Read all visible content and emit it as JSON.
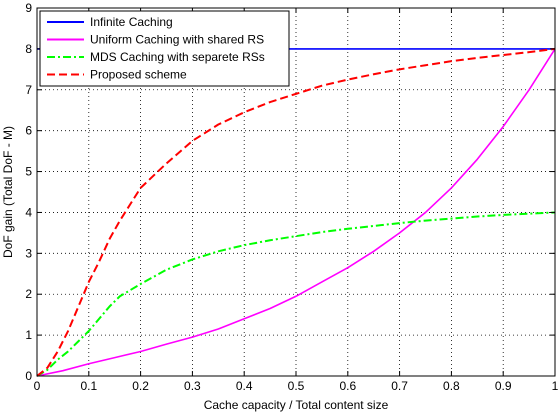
{
  "chart_data": {
    "type": "line",
    "title": "",
    "xlabel": "Cache capacity / Total content size",
    "ylabel": "DoF gain (Total DoF - M)",
    "xlim": [
      0,
      1
    ],
    "ylim": [
      0,
      9
    ],
    "xticks": [
      0,
      0.1,
      0.2,
      0.3,
      0.4,
      0.5,
      0.6,
      0.7,
      0.8,
      0.9,
      1
    ],
    "xtick_labels": [
      "0",
      "0.1",
      "0.2",
      "0.3",
      "0.4",
      "0.5",
      "0.6",
      "0.7",
      "0.8",
      "0.9",
      "1"
    ],
    "yticks": [
      0,
      1,
      2,
      3,
      4,
      5,
      6,
      7,
      8,
      9
    ],
    "ytick_labels": [
      "0",
      "1",
      "2",
      "3",
      "4",
      "5",
      "6",
      "7",
      "8",
      "9"
    ],
    "grid": true,
    "legend_position": "top-left",
    "series": [
      {
        "name": "Infinite Caching",
        "color": "#0000ff",
        "style": "solid",
        "x": [
          0,
          1
        ],
        "y": [
          8,
          8
        ]
      },
      {
        "name": "Uniform Caching with shared RS",
        "color": "#ff00ff",
        "style": "solid",
        "x": [
          0,
          0.05,
          0.1,
          0.15,
          0.2,
          0.25,
          0.3,
          0.35,
          0.4,
          0.45,
          0.5,
          0.55,
          0.6,
          0.65,
          0.7,
          0.75,
          0.8,
          0.85,
          0.9,
          0.95,
          1
        ],
        "y": [
          0,
          0.13,
          0.3,
          0.45,
          0.6,
          0.78,
          0.95,
          1.15,
          1.4,
          1.65,
          1.95,
          2.3,
          2.65,
          3.05,
          3.5,
          4.0,
          4.6,
          5.3,
          6.1,
          7.0,
          8.0
        ]
      },
      {
        "name": "MDS Caching with separete RSs",
        "color": "#00ff00",
        "style": "dashdot",
        "x": [
          0,
          0.02,
          0.04,
          0.06,
          0.08,
          0.1,
          0.12,
          0.14,
          0.16,
          0.18,
          0.2,
          0.25,
          0.3,
          0.35,
          0.4,
          0.45,
          0.5,
          0.55,
          0.6,
          0.65,
          0.7,
          0.75,
          0.8,
          0.85,
          0.9,
          0.95,
          1
        ],
        "y": [
          0,
          0.15,
          0.4,
          0.6,
          0.85,
          1.1,
          1.4,
          1.7,
          1.95,
          2.1,
          2.25,
          2.6,
          2.85,
          3.05,
          3.2,
          3.32,
          3.42,
          3.52,
          3.6,
          3.67,
          3.74,
          3.8,
          3.85,
          3.9,
          3.94,
          3.97,
          4.0
        ]
      },
      {
        "name": "Proposed scheme",
        "color": "#ff0000",
        "style": "dashed",
        "x": [
          0,
          0.02,
          0.04,
          0.06,
          0.08,
          0.1,
          0.12,
          0.14,
          0.16,
          0.18,
          0.2,
          0.25,
          0.3,
          0.35,
          0.4,
          0.45,
          0.5,
          0.55,
          0.6,
          0.65,
          0.7,
          0.75,
          0.8,
          0.85,
          0.9,
          0.95,
          1
        ],
        "y": [
          0,
          0.2,
          0.6,
          1.1,
          1.7,
          2.3,
          2.8,
          3.35,
          3.8,
          4.2,
          4.6,
          5.2,
          5.75,
          6.15,
          6.45,
          6.7,
          6.9,
          7.1,
          7.25,
          7.38,
          7.5,
          7.6,
          7.7,
          7.78,
          7.85,
          7.92,
          8.0
        ]
      }
    ]
  }
}
